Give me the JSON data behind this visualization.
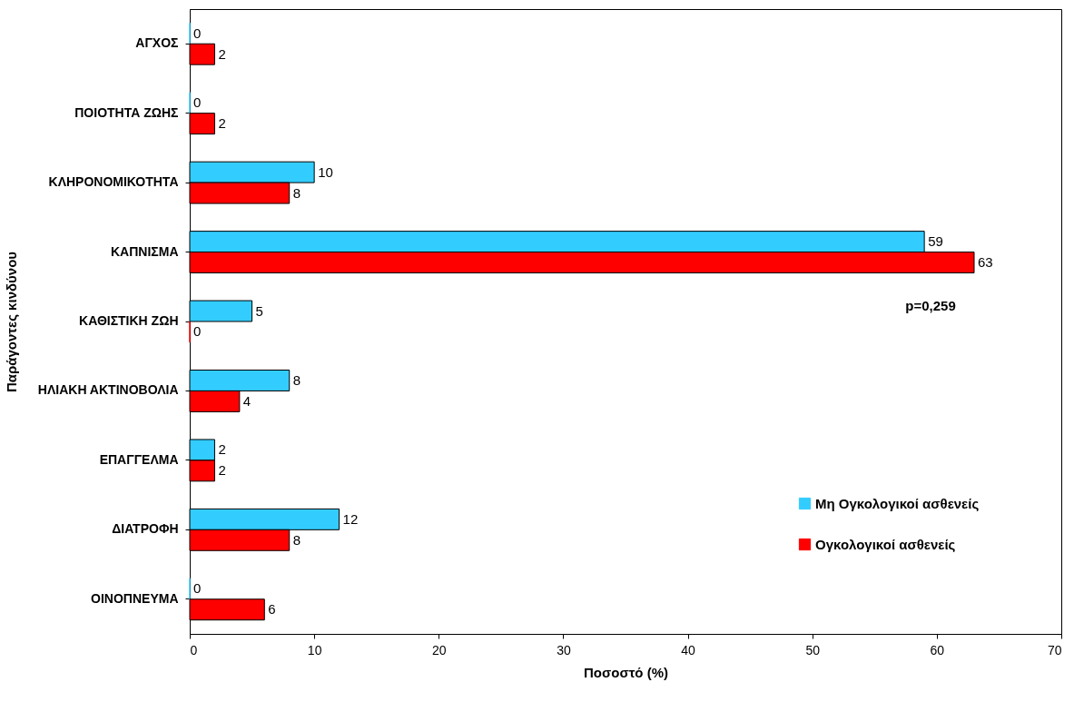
{
  "chart_data": {
    "type": "bar",
    "orientation": "horizontal",
    "xlabel": "Ποσοστό (%)",
    "ylabel": "Παράγοντες κινδύνου",
    "categories": [
      "ΑΓΧΟΣ",
      "ΠΟΙΟΤΗΤΑ ΖΩΗΣ",
      "ΚΛΗΡΟΝΟΜΙΚΟΤΗΤΑ",
      "ΚΑΠΝΙΣΜΑ",
      "ΚΑΘΙΣΤΙΚΗ ΖΩΗ",
      "ΗΛΙΑΚΗ ΑΚΤΙΝΟΒΟΛΙΑ",
      "ΕΠΑΓΓΕΛΜΑ",
      "ΔΙΑΤΡΟΦΗ",
      "ΟΙΝΟΠΝΕΥΜΑ"
    ],
    "series": [
      {
        "name": "Μη Ογκολογικοί ασθενείς",
        "color": "#33ccff",
        "values": [
          0,
          0,
          10,
          59,
          5,
          8,
          2,
          12,
          0
        ]
      },
      {
        "name": "Ογκολογικοί ασθενείς",
        "color": "#ff0000",
        "values": [
          2,
          2,
          8,
          63,
          0,
          4,
          2,
          8,
          6
        ]
      }
    ],
    "xlim": [
      0,
      70
    ],
    "xticks": [
      0,
      10,
      20,
      30,
      40,
      50,
      60,
      70
    ],
    "data_labels": true,
    "legend": "bottom right",
    "grid": false,
    "annotations": [
      "p=0,259"
    ]
  }
}
